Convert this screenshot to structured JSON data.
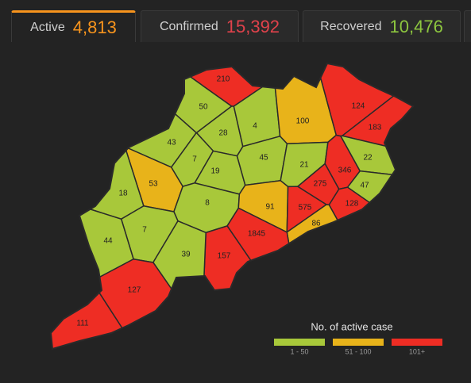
{
  "tabs": [
    {
      "label": "Active",
      "count": "4,813",
      "color": "#f7941d"
    },
    {
      "label": "Confirmed",
      "count": "15,392",
      "color": "#e0424b"
    },
    {
      "label": "Recovered",
      "count": "10,476",
      "color": "#8dc63f"
    }
  ],
  "map": {
    "districts": [
      {
        "label": "210",
        "color": "#ee2d24"
      },
      {
        "label": "50",
        "color": "#a8c83a"
      },
      {
        "label": "28",
        "color": "#a8c83a"
      },
      {
        "label": "4",
        "color": "#a8c83a"
      },
      {
        "label": "100",
        "color": "#e8b31a"
      },
      {
        "label": "124",
        "color": "#ee2d24"
      },
      {
        "label": "183",
        "color": "#ee2d24"
      },
      {
        "label": "43",
        "color": "#a8c83a"
      },
      {
        "label": "7",
        "color": "#a8c83a"
      },
      {
        "label": "19",
        "color": "#a8c83a"
      },
      {
        "label": "45",
        "color": "#a8c83a"
      },
      {
        "label": "21",
        "color": "#a8c83a"
      },
      {
        "label": "346",
        "color": "#ee2d24"
      },
      {
        "label": "22",
        "color": "#a8c83a"
      },
      {
        "label": "53",
        "color": "#e8b31a"
      },
      {
        "label": "18",
        "color": "#a8c83a"
      },
      {
        "label": "8",
        "color": "#a8c83a"
      },
      {
        "label": "275",
        "color": "#ee2d24"
      },
      {
        "label": "47",
        "color": "#a8c83a"
      },
      {
        "label": "91",
        "color": "#e8b31a"
      },
      {
        "label": "575",
        "color": "#ee2d24"
      },
      {
        "label": "128",
        "color": "#ee2d24"
      },
      {
        "label": "86",
        "color": "#e8b31a"
      },
      {
        "label": "7",
        "color": "#a8c83a"
      },
      {
        "label": "44",
        "color": "#a8c83a"
      },
      {
        "label": "1845",
        "color": "#ee2d24"
      },
      {
        "label": "157",
        "color": "#ee2d24"
      },
      {
        "label": "39",
        "color": "#a8c83a"
      },
      {
        "label": "127",
        "color": "#ee2d24"
      },
      {
        "label": "111",
        "color": "#ee2d24"
      }
    ]
  },
  "legend": {
    "title": "No. of active case",
    "items": [
      {
        "label": "1 - 50",
        "color": "#a8c83a"
      },
      {
        "label": "51 - 100",
        "color": "#e8b31a"
      },
      {
        "label": "101+",
        "color": "#ee2d24"
      }
    ]
  }
}
